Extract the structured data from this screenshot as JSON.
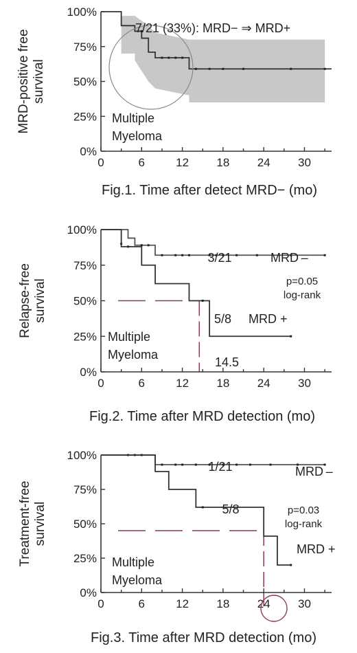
{
  "chart_data": [
    {
      "type": "line",
      "caption": "Fig.1. Time after detect MRD−  (mo)",
      "ylabel_line1": "MRD-positive free",
      "ylabel_line2": "survival",
      "yticks": [
        "0%",
        "25%",
        "50%",
        "75%",
        "100%"
      ],
      "xticks": [
        "0",
        "6",
        "12",
        "18",
        "24",
        "30"
      ],
      "xlim": [
        0,
        34
      ],
      "ylim": [
        0,
        100
      ],
      "grid": false,
      "annotation": "7/21 (33%): MRD− ⇒ MRD+",
      "label_line1": "Multiple",
      "label_line2": "Myeloma",
      "series": [
        {
          "color": "#333333",
          "steps": [
            [
              0,
              100
            ],
            [
              3,
              100
            ],
            [
              3,
              90
            ],
            [
              5,
              90
            ],
            [
              5,
              86
            ],
            [
              6,
              86
            ],
            [
              6,
              81
            ],
            [
              7,
              81
            ],
            [
              7,
              71
            ],
            [
              8,
              71
            ],
            [
              8,
              67
            ],
            [
              13,
              67
            ],
            [
              13,
              59
            ],
            [
              34,
              59
            ]
          ],
          "censor": [
            [
              6,
              86
            ],
            [
              9,
              67
            ],
            [
              10,
              67
            ],
            [
              11,
              67
            ],
            [
              12,
              67
            ],
            [
              14,
              59
            ],
            [
              16,
              59
            ],
            [
              18,
              59
            ],
            [
              21,
              59
            ],
            [
              28,
              59
            ],
            [
              33,
              59
            ]
          ]
        }
      ],
      "ci_band": [
        [
          3,
          97,
          70
        ],
        [
          5,
          97,
          70
        ],
        [
          5,
          97,
          65
        ],
        [
          7,
          90,
          50
        ],
        [
          8,
          85,
          45
        ],
        [
          13,
          80,
          40
        ],
        [
          13,
          80,
          35
        ],
        [
          33,
          80,
          35
        ]
      ],
      "ci_color": "#c8c8c8"
    },
    {
      "type": "line",
      "caption": "Fig.2. Time after MRD detection (mo)",
      "ylabel_line1": "Relapse-free",
      "ylabel_line2": "survival",
      "yticks": [
        "0%",
        "25%",
        "50%",
        "75%",
        "100%"
      ],
      "xticks": [
        "0",
        "6",
        "12",
        "18",
        "24",
        "30"
      ],
      "xlim": [
        0,
        34
      ],
      "ylim": [
        0,
        100
      ],
      "grid": false,
      "annotation_top": "3/21",
      "label_top": "MRD –",
      "annotation_bottom": "5/8",
      "label_bottom": "MRD +",
      "pvalue": "p=0.05",
      "test": "log-rank",
      "median_label": "14.5",
      "median_color": "#8b3a50",
      "label_line1": "Multiple",
      "label_line2": "Myeloma",
      "series": [
        {
          "name": "MRD−",
          "color": "#555555",
          "steps": [
            [
              0,
              100
            ],
            [
              4,
              100
            ],
            [
              4,
              94
            ],
            [
              5,
              94
            ],
            [
              5,
              89
            ],
            [
              8,
              89
            ],
            [
              8,
              82
            ],
            [
              33,
              82
            ]
          ],
          "censor": [
            [
              3,
              90
            ],
            [
              6,
              89
            ],
            [
              7,
              89
            ],
            [
              9,
              82
            ],
            [
              11,
              82
            ],
            [
              12,
              82
            ],
            [
              13,
              82
            ],
            [
              16,
              82
            ],
            [
              17,
              82
            ],
            [
              18,
              82
            ],
            [
              20,
              82
            ],
            [
              23,
              82
            ],
            [
              28,
              82
            ],
            [
              33,
              82
            ]
          ]
        },
        {
          "name": "MRD+",
          "color": "#333333",
          "steps": [
            [
              0,
              100
            ],
            [
              3,
              100
            ],
            [
              3,
              88
            ],
            [
              6,
              88
            ],
            [
              6,
              75
            ],
            [
              8,
              75
            ],
            [
              8,
              62
            ],
            [
              13,
              62
            ],
            [
              13,
              50
            ],
            [
              16,
              50
            ],
            [
              16,
              25
            ],
            [
              28,
              25
            ]
          ],
          "censor": [
            [
              4,
              88
            ],
            [
              15,
              50
            ],
            [
              28,
              25
            ]
          ]
        }
      ],
      "median_x": 14.5
    },
    {
      "type": "line",
      "caption": "Fig.3. Time after MRD detection (mo)",
      "ylabel_line1": "Treatment-free",
      "ylabel_line2": "survival",
      "yticks": [
        "0%",
        "25%",
        "50%",
        "75%",
        "100%"
      ],
      "xticks": [
        "0",
        "6",
        "12",
        "18",
        "24",
        "30"
      ],
      "xlim": [
        0,
        34
      ],
      "ylim": [
        0,
        100
      ],
      "grid": false,
      "annotation_top": "1/21",
      "label_top": "MRD –",
      "annotation_bottom": "5/8",
      "label_bottom": "MRD +",
      "pvalue": "p=0.03",
      "test": "log-rank",
      "median_color": "#8b3a50",
      "label_line1": "Multiple",
      "label_line2": "Myeloma",
      "series": [
        {
          "name": "MRD−",
          "color": "#555555",
          "steps": [
            [
              0,
              100
            ],
            [
              8,
              100
            ],
            [
              8,
              93
            ],
            [
              33,
              93
            ]
          ],
          "censor": [
            [
              4,
              100
            ],
            [
              5,
              100
            ],
            [
              6,
              100
            ],
            [
              9,
              93
            ],
            [
              11,
              93
            ],
            [
              12,
              93
            ],
            [
              14,
              93
            ],
            [
              16,
              93
            ],
            [
              18,
              93
            ],
            [
              20,
              93
            ],
            [
              22,
              93
            ],
            [
              25,
              93
            ],
            [
              29,
              93
            ],
            [
              33,
              93
            ]
          ]
        },
        {
          "name": "MRD+",
          "color": "#333333",
          "steps": [
            [
              0,
              100
            ],
            [
              8,
              100
            ],
            [
              8,
              88
            ],
            [
              10,
              88
            ],
            [
              10,
              75
            ],
            [
              14,
              75
            ],
            [
              14,
              62
            ],
            [
              24,
              62
            ],
            [
              24,
              41
            ],
            [
              26,
              41
            ],
            [
              26,
              20
            ],
            [
              28,
              20
            ]
          ],
          "censor": [
            [
              15,
              62
            ],
            [
              28,
              20
            ]
          ]
        }
      ],
      "median_x": 24,
      "median_y": 45
    }
  ]
}
